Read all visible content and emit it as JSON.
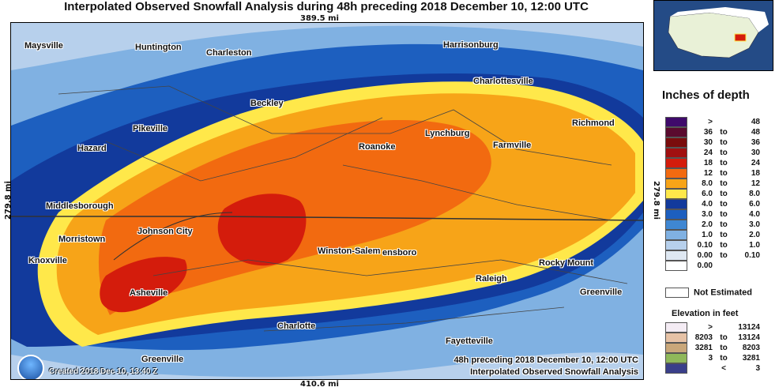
{
  "title": "Interpolated Observed Snowfall Analysis during 48h preceding 2018 December 10, 12:00 UTC",
  "dimensions": {
    "top": "389.5 mi",
    "bottom": "410.6 mi",
    "left": "279.8 mi",
    "right": "279.8 mi"
  },
  "cities": [
    {
      "name": "Maysville"
    },
    {
      "name": "Huntington"
    },
    {
      "name": "Charleston"
    },
    {
      "name": "Harrisonburg"
    },
    {
      "name": "Charlottesville"
    },
    {
      "name": "Beckley"
    },
    {
      "name": "Pikeville"
    },
    {
      "name": "Hazard"
    },
    {
      "name": "Roanoke"
    },
    {
      "name": "Lynchburg"
    },
    {
      "name": "Farmville"
    },
    {
      "name": "Richmond"
    },
    {
      "name": "Middlesborough"
    },
    {
      "name": "Morristown"
    },
    {
      "name": "Johnson City"
    },
    {
      "name": "Knoxville"
    },
    {
      "name": "Winston-Salem"
    },
    {
      "name": "ensboro"
    },
    {
      "name": "Rocky Mount"
    },
    {
      "name": "Raleigh"
    },
    {
      "name": "Asheville"
    },
    {
      "name": "Greenville"
    },
    {
      "name": "Charlotte"
    },
    {
      "name": "Fayetteville"
    },
    {
      "name": "Greenville"
    }
  ],
  "footer": {
    "created": "Created 2018 Dec 10, 13:40 Z",
    "period": "48h preceding 2018 December 10, 12:00 UTC",
    "product": "Interpolated Observed Snowfall Analysis"
  },
  "legend": {
    "title": "Inches of depth",
    "rows": [
      {
        "lo": ">",
        "to": "",
        "hi": "48",
        "color": "#3f0a6b"
      },
      {
        "lo": "36",
        "to": "to",
        "hi": "48",
        "color": "#5a0a2e"
      },
      {
        "lo": "30",
        "to": "to",
        "hi": "36",
        "color": "#7a0c0c"
      },
      {
        "lo": "24",
        "to": "to",
        "hi": "30",
        "color": "#a11010"
      },
      {
        "lo": "18",
        "to": "to",
        "hi": "24",
        "color": "#d41c0c"
      },
      {
        "lo": "12",
        "to": "to",
        "hi": "18",
        "color": "#f26a10"
      },
      {
        "lo": "8.0",
        "to": "to",
        "hi": "12",
        "color": "#f7a418"
      },
      {
        "lo": "6.0",
        "to": "to",
        "hi": "8.0",
        "color": "#ffe84a"
      },
      {
        "lo": "4.0",
        "to": "to",
        "hi": "6.0",
        "color": "#123a9c"
      },
      {
        "lo": "3.0",
        "to": "to",
        "hi": "4.0",
        "color": "#1d5fbf"
      },
      {
        "lo": "2.0",
        "to": "to",
        "hi": "3.0",
        "color": "#3f87d2"
      },
      {
        "lo": "1.0",
        "to": "to",
        "hi": "2.0",
        "color": "#80b1e2"
      },
      {
        "lo": "0.10",
        "to": "to",
        "hi": "1.0",
        "color": "#b7d0ec"
      },
      {
        "lo": "0.00",
        "to": "to",
        "hi": "0.10",
        "color": "#dfe8f2"
      },
      {
        "lo": "0.00",
        "to": "",
        "hi": "",
        "color": "#ffffff"
      }
    ],
    "not_estimated": "Not Estimated"
  },
  "elevation": {
    "title": "Elevation in feet",
    "rows": [
      {
        "lo": ">",
        "to": "",
        "hi": "13124",
        "color": "#f4ecf4"
      },
      {
        "lo": "8203",
        "to": "to",
        "hi": "13124",
        "color": "#e6c2a6"
      },
      {
        "lo": "3281",
        "to": "to",
        "hi": "8203",
        "color": "#c9a77a"
      },
      {
        "lo": "3",
        "to": "to",
        "hi": "3281",
        "color": "#8fb85a"
      },
      {
        "lo": "",
        "to": "<",
        "hi": "3",
        "color": "#3a3f8a"
      }
    ]
  }
}
